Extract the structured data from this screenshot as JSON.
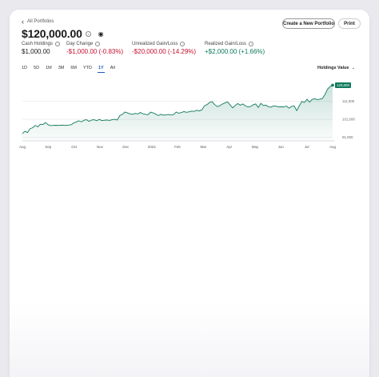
{
  "nav": {
    "back_label": "All Portfolios"
  },
  "portfolio": {
    "total_value": "$120,000.00"
  },
  "buttons": {
    "create": "Create a New Portfolio",
    "print": "Print"
  },
  "metrics": [
    {
      "label": "Cash Holdings",
      "value": "$1,000.00",
      "tone": "neutral"
    },
    {
      "label": "Day Change",
      "value": "-$1,000.00 (-0.83%)",
      "tone": "negative"
    },
    {
      "label": "Unrealized Gain/Loss",
      "value": "-$20,000.00 (-14.29%)",
      "tone": "negative"
    },
    {
      "label": "Realized Gain/Loss",
      "value": "+$2,000.00 (+1.66%)",
      "tone": "positive"
    }
  ],
  "time_ranges": [
    "1D",
    "5D",
    "1M",
    "3M",
    "6M",
    "YTD",
    "1Y",
    "All"
  ],
  "active_range": "1Y",
  "holdings_dropdown": {
    "selected": "Holdings Value"
  },
  "colors": {
    "line": "#0f7a5c",
    "negative": "#c8102e",
    "positive": "#0f7a5c",
    "active_tab": "#1f57c2"
  },
  "chart_data": {
    "type": "area",
    "series": [
      {
        "values": [
          93000,
          94400,
          93600,
          95800,
          96300,
          97600,
          96800,
          98300,
          98100,
          99200,
          98000,
          97500,
          97600,
          97700,
          97600,
          97700,
          97800,
          97600,
          97800,
          98000,
          99000,
          99500,
          100200,
          99600,
          100500,
          100800,
          99900,
          100600,
          100800,
          100200,
          101000,
          100300,
          100500,
          100600,
          100400,
          100800,
          101000,
          100600,
          103100,
          103800,
          105100,
          104600,
          104100,
          103800,
          104300,
          104000,
          104800,
          104100,
          103800,
          103600,
          105000,
          104600,
          103900,
          103100,
          103800,
          103300,
          103500,
          103700,
          103400,
          103700,
          105100,
          104400,
          104800,
          105300,
          104900,
          105200,
          105600,
          105400,
          106100,
          105700,
          106300,
          108500,
          109200,
          110400,
          110900,
          109200,
          108100,
          108600,
          109500,
          110200,
          110700,
          109100,
          107400,
          108700,
          109800,
          108900,
          109600,
          108500,
          107900,
          108200,
          109100,
          109600,
          107600,
          109900,
          108700,
          108900,
          108000,
          107800,
          108500,
          108300,
          107900,
          108000,
          107900,
          108400,
          107200,
          108200,
          108500,
          105800,
          108500,
          111000,
          110400,
          112200,
          110600,
          112100,
          112500,
          112000,
          112200,
          112600,
          114800,
          117800,
          119300,
          120000
        ]
      }
    ],
    "x_ticks": [
      "Aug",
      "Sep",
      "Oct",
      "Nov",
      "Dec",
      "2023",
      "Feb",
      "Mar",
      "Apr",
      "May",
      "Jun",
      "Jul",
      "Aug"
    ],
    "y_ticks": [
      111000,
      101000,
      91000
    ],
    "y_tick_labels": [
      "111,000",
      "101,000",
      "91,000"
    ],
    "last_value_label": "120,000",
    "ylim": [
      89000,
      122000
    ],
    "grid": true
  }
}
